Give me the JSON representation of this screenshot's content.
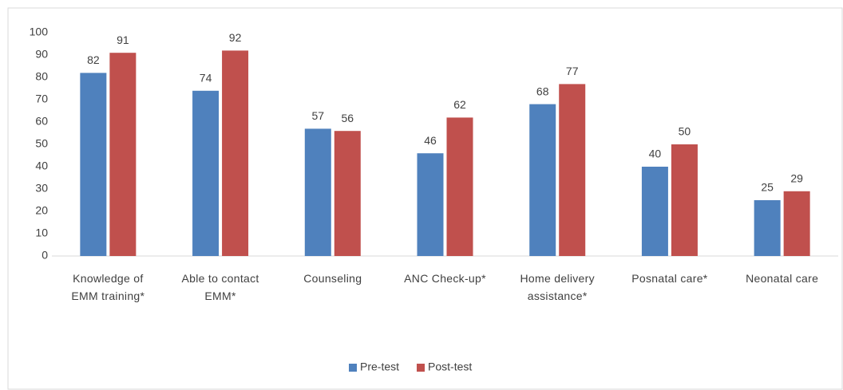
{
  "chart_data": {
    "type": "bar",
    "categories": [
      "Knowledge of EMM training*",
      "Able to contact EMM*",
      "Counseling",
      "ANC Check-up*",
      "Home delivery assistance*",
      "Posnatal care*",
      "Neonatal care"
    ],
    "series": [
      {
        "name": "Pre-test",
        "color": "#4f81bd",
        "values": [
          82,
          74,
          57,
          46,
          68,
          40,
          25
        ]
      },
      {
        "name": "Post-test",
        "color": "#c0504d",
        "values": [
          91,
          92,
          56,
          62,
          77,
          50,
          29
        ]
      }
    ],
    "ylim": [
      0,
      100
    ],
    "yticks": [
      0,
      10,
      20,
      30,
      40,
      50,
      60,
      70,
      80,
      90,
      100
    ],
    "grid": false,
    "legend": "bottom"
  }
}
